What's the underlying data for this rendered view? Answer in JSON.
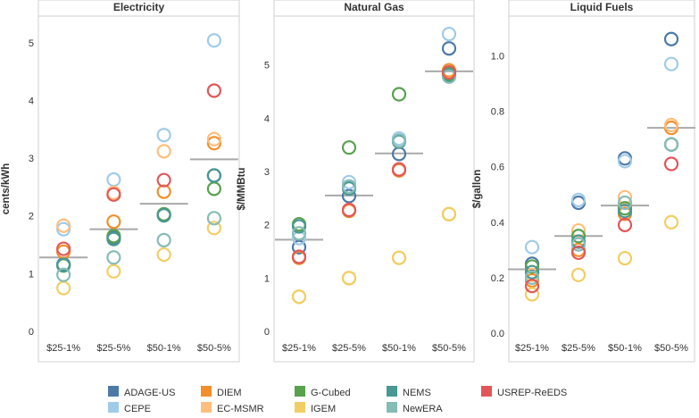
{
  "chart_data": {
    "type": "scatter",
    "categories": [
      "$25-1%",
      "$25-5%",
      "$50-1%",
      "$50-5%"
    ],
    "legend": [
      {
        "name": "ADAGE-US",
        "color": "#4e79a7"
      },
      {
        "name": "CEPE",
        "color": "#a0cbe8"
      },
      {
        "name": "DIEM",
        "color": "#f28e2b"
      },
      {
        "name": "EC-MSMR",
        "color": "#ffbe7d"
      },
      {
        "name": "G-Cubed",
        "color": "#59a14f"
      },
      {
        "name": "IGEM",
        "color": "#f1ce63"
      },
      {
        "name": "NEMS",
        "color": "#499894"
      },
      {
        "name": "NewERA",
        "color": "#86bcb6"
      },
      {
        "name": "USREP-ReEDS",
        "color": "#e15759"
      }
    ],
    "panels": [
      {
        "title": "Electricity",
        "ylabel": "cents/kWh",
        "ylim": [
          0,
          5.4
        ],
        "ticks": [
          {
            "value": 0,
            "label": "0"
          },
          {
            "value": 1,
            "label": "1"
          },
          {
            "value": 2,
            "label": "2"
          },
          {
            "value": 3,
            "label": "3"
          },
          {
            "value": 4,
            "label": "4"
          },
          {
            "value": 5,
            "label": "5"
          }
        ],
        "means": [
          1.28,
          1.77,
          2.21,
          2.98
        ],
        "series": [
          {
            "name": "ADAGE-US",
            "values": [
              1.16,
              1.62,
              2.02,
              2.7
            ]
          },
          {
            "name": "CEPE",
            "values": [
              1.77,
              2.63,
              3.4,
              5.04
            ]
          },
          {
            "name": "DIEM",
            "values": [
              1.38,
              1.9,
              2.42,
              3.26
            ]
          },
          {
            "name": "EC-MSMR",
            "values": [
              1.83,
              2.4,
              3.12,
              3.33
            ]
          },
          {
            "name": "G-Cubed",
            "values": [
              1.14,
              1.65,
              2.03,
              2.47
            ]
          },
          {
            "name": "IGEM",
            "values": [
              0.75,
              1.04,
              1.33,
              1.79
            ]
          },
          {
            "name": "NEMS",
            "values": [
              1.15,
              1.6,
              2.01,
              2.7
            ]
          },
          {
            "name": "NewERA",
            "values": [
              0.98,
              1.28,
              1.58,
              1.96
            ]
          },
          {
            "name": "USREP-ReEDS",
            "values": [
              1.43,
              2.37,
              2.62,
              4.17
            ]
          }
        ]
      },
      {
        "title": "Natural Gas",
        "ylabel": "$/MMBtu",
        "ylim": [
          0,
          5.85
        ],
        "ticks": [
          {
            "value": 0,
            "label": "0"
          },
          {
            "value": 1,
            "label": "1"
          },
          {
            "value": 2,
            "label": "2"
          },
          {
            "value": 3,
            "label": "3"
          },
          {
            "value": 4,
            "label": "4"
          },
          {
            "value": 5,
            "label": "5"
          }
        ],
        "means": [
          1.72,
          2.55,
          3.34,
          4.88
        ],
        "series": [
          {
            "name": "ADAGE-US",
            "values": [
              1.58,
              2.54,
              3.33,
              5.31
            ]
          },
          {
            "name": "CEPE",
            "values": [
              1.75,
              2.8,
              3.62,
              5.58
            ]
          },
          {
            "name": "DIEM",
            "values": [
              1.38,
              2.26,
              3.02,
              4.9
            ]
          },
          {
            "name": "EC-MSMR",
            "values": [
              0.65,
              1.0,
              1.38,
              2.2
            ]
          },
          {
            "name": "G-Cubed",
            "values": [
              2.01,
              3.45,
              4.45,
              4.83
            ]
          },
          {
            "name": "IGEM",
            "values": [
              0.65,
              1.0,
              1.38,
              2.2
            ]
          },
          {
            "name": "NEMS",
            "values": [
              1.97,
              2.68,
              3.56,
              4.8
            ]
          },
          {
            "name": "NewERA",
            "values": [
              1.84,
              2.72,
              3.58,
              4.78
            ]
          },
          {
            "name": "USREP-ReEDS",
            "values": [
              1.4,
              2.28,
              3.04,
              4.86
            ]
          }
        ]
      },
      {
        "title": "Liquid Fuels",
        "ylabel": "$/gallon",
        "ylim": [
          0,
          1.13
        ],
        "ticks": [
          {
            "value": 0,
            "label": "0.0"
          },
          {
            "value": 0.2,
            "label": "0.2"
          },
          {
            "value": 0.4,
            "label": "0.4"
          },
          {
            "value": 0.6,
            "label": "0.6"
          },
          {
            "value": 0.8,
            "label": "0.8"
          },
          {
            "value": 1.0,
            "label": "1.0"
          }
        ],
        "means": [
          0.23,
          0.35,
          0.46,
          0.74
        ],
        "series": [
          {
            "name": "ADAGE-US",
            "values": [
              0.25,
              0.47,
              0.63,
              1.06
            ]
          },
          {
            "name": "CEPE",
            "values": [
              0.31,
              0.48,
              0.62,
              0.97
            ]
          },
          {
            "name": "DIEM",
            "values": [
              0.19,
              0.3,
              0.43,
              0.74
            ]
          },
          {
            "name": "EC-MSMR",
            "values": [
              0.21,
              0.37,
              0.49,
              0.75
            ]
          },
          {
            "name": "G-Cubed",
            "values": [
              0.24,
              0.35,
              0.45,
              0.68
            ]
          },
          {
            "name": "IGEM",
            "values": [
              0.14,
              0.21,
              0.27,
              0.4
            ]
          },
          {
            "name": "NEMS",
            "values": [
              0.22,
              0.33,
              0.44,
              0.68
            ]
          },
          {
            "name": "NewERA",
            "values": [
              0.2,
              0.32,
              0.47,
              0.68
            ]
          },
          {
            "name": "USREP-ReEDS",
            "values": [
              0.17,
              0.29,
              0.39,
              0.61
            ]
          }
        ]
      }
    ]
  }
}
